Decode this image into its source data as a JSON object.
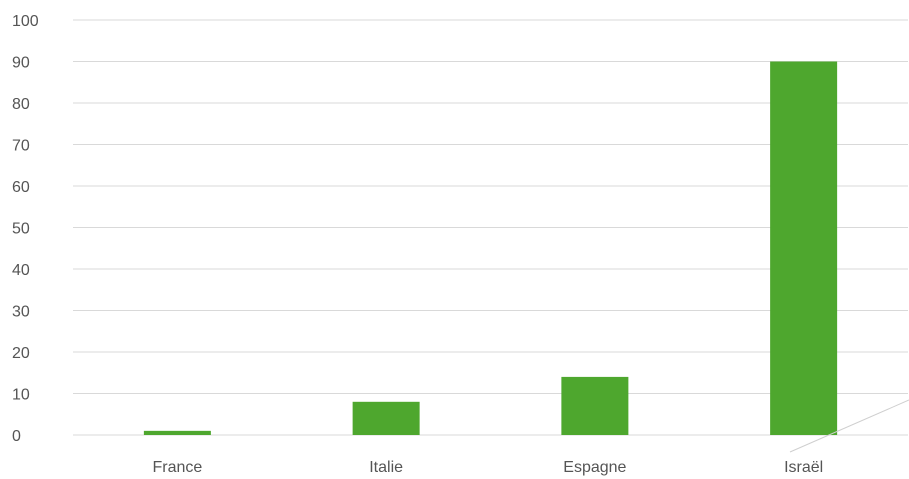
{
  "chart_data": {
    "type": "bar",
    "categories": [
      "France",
      "Italie",
      "Espagne",
      "Israël"
    ],
    "values": [
      1,
      8,
      14,
      90
    ],
    "ylim": [
      0,
      100
    ],
    "yticks": [
      0,
      10,
      20,
      30,
      40,
      50,
      60,
      70,
      80,
      90,
      100
    ],
    "grid": true,
    "legend": "none",
    "bar_color": "#4ea72e",
    "grid_color": "#d9d9d9",
    "label_color": "#555555"
  }
}
